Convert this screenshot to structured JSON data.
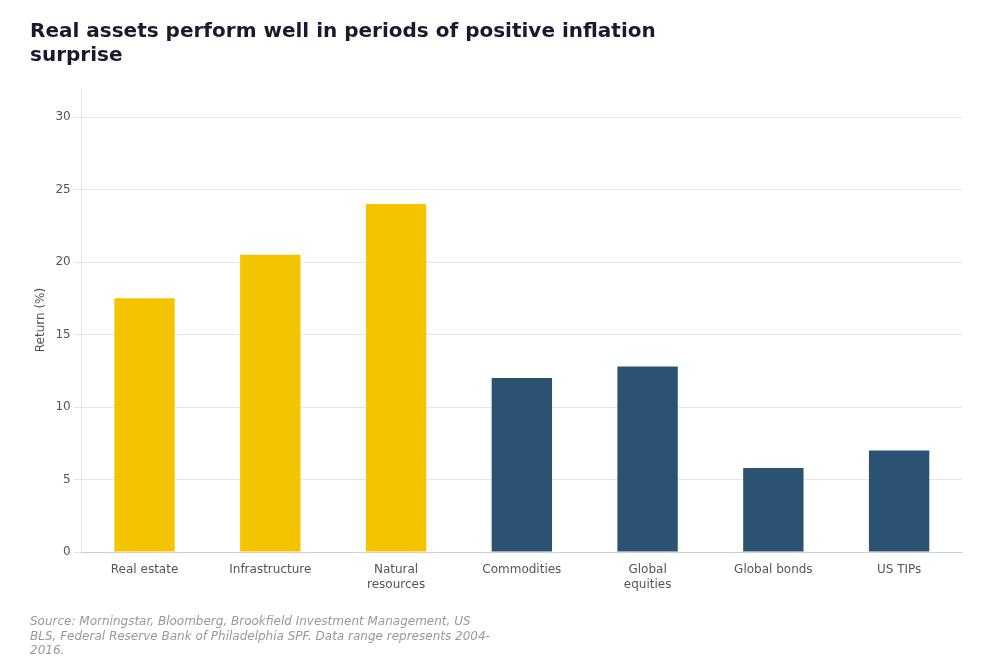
{
  "chart_data": {
    "type": "bar",
    "title": "Real assets perform well in periods of positive inflation\nsurprise",
    "ylabel": "Return (%)",
    "categories": [
      "Real estate",
      "Infrastructure",
      "Natural\nresources",
      "Commodities",
      "Global\nequities",
      "Global bonds",
      "US TIPs"
    ],
    "values": [
      17.5,
      20.5,
      24.0,
      12.0,
      12.8,
      5.8,
      7.0
    ],
    "colors": [
      "#F5C400",
      "#F5C400",
      "#F5C400",
      "#2B5271",
      "#2B5271",
      "#2B5271",
      "#2B5271"
    ],
    "ylim": [
      0,
      32
    ],
    "yticks": [
      0,
      5,
      10,
      15,
      20,
      25,
      30
    ],
    "grid": true,
    "annotations": [
      "Source: Morningstar, Bloomberg, Brookfield Investment Management, US\nBLS, Federal Reserve Bank of Philadelphia SPF. Data range represents 2004-\n2016."
    ]
  }
}
